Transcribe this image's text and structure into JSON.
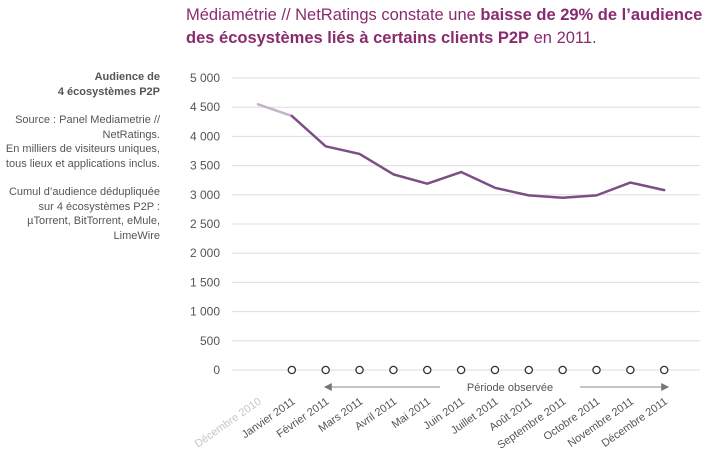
{
  "headline": {
    "part1": "Médiamétrie // NetRatings constate une ",
    "bold": "baisse de 29% de l’audience des écosystèmes liés à certains clients P2P",
    "part2": " en 2011."
  },
  "sidebar": {
    "title_line1": "Audience de",
    "title_line2": "4 écosystèmes P2P",
    "source": "Source : Panel Mediametrie // NetRatings.",
    "units": "En milliers de visiteurs uniques, tous lieux et applications inclus.",
    "note": "Cumul d’audience dédupliquée sur 4 écosystèmes P2P : µTorrent, BitTorrent, eMule, LimeWire"
  },
  "chart_data": {
    "type": "line",
    "ylim": [
      0,
      5000
    ],
    "yticks": [
      0,
      500,
      1000,
      1500,
      2000,
      2500,
      3000,
      3500,
      4000,
      4500,
      5000
    ],
    "ytick_labels": [
      "0",
      "500",
      "1 000",
      "1 500",
      "2 000",
      "2 500",
      "3 000",
      "3 500",
      "4 000",
      "4 500",
      "5 000"
    ],
    "categories": [
      "Décembre 2010",
      "Janvier 2011",
      "Février 2011",
      "Mars 2011",
      "Avril 2011",
      "Mai 2011",
      "Juin 2011",
      "Juillet 2011",
      "Août 2011",
      "Septembre 2011",
      "Octobre 2011",
      "Novembre 2011",
      "Décembre 2011"
    ],
    "values": [
      4550,
      4350,
      3830,
      3700,
      3350,
      3190,
      3390,
      3120,
      2990,
      2950,
      2990,
      3210,
      3080
    ],
    "observed_period_label": "Période observée",
    "colors": {
      "line": "#7d4e86",
      "line_pre": "#c4b3c9",
      "label_pre": "#c6c6c6",
      "grid": "#dddddd",
      "text": "#555555",
      "headline": "#8a2b6e"
    }
  }
}
